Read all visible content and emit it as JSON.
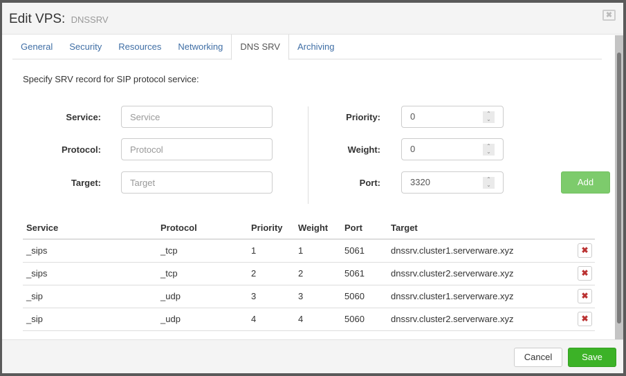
{
  "header": {
    "title": "Edit VPS:",
    "subtitle": "DNSSRV"
  },
  "tabs": [
    {
      "label": "General"
    },
    {
      "label": "Security"
    },
    {
      "label": "Resources"
    },
    {
      "label": "Networking"
    },
    {
      "label": "DNS SRV",
      "active": true
    },
    {
      "label": "Archiving"
    }
  ],
  "form": {
    "intro": "Specify SRV record for SIP protocol service:",
    "service": {
      "label": "Service:",
      "placeholder": "Service",
      "value": ""
    },
    "protocol": {
      "label": "Protocol:",
      "placeholder": "Protocol",
      "value": ""
    },
    "target": {
      "label": "Target:",
      "placeholder": "Target",
      "value": ""
    },
    "priority": {
      "label": "Priority:",
      "value": "0"
    },
    "weight": {
      "label": "Weight:",
      "value": "0"
    },
    "port": {
      "label": "Port:",
      "value": "3320"
    },
    "add_label": "Add"
  },
  "table": {
    "columns": [
      "Service",
      "Protocol",
      "Priority",
      "Weight",
      "Port",
      "Target"
    ],
    "rows": [
      [
        "_sips",
        "_tcp",
        "1",
        "1",
        "5061",
        "dnssrv.cluster1.serverware.xyz"
      ],
      [
        "_sips",
        "_tcp",
        "2",
        "2",
        "5061",
        "dnssrv.cluster2.serverware.xyz"
      ],
      [
        "_sip",
        "_udp",
        "3",
        "3",
        "5060",
        "dnssrv.cluster1.serverware.xyz"
      ],
      [
        "_sip",
        "_udp",
        "4",
        "4",
        "5060",
        "dnssrv.cluster2.serverware.xyz"
      ]
    ]
  },
  "footer": {
    "cancel_label": "Cancel",
    "save_label": "Save"
  },
  "colors": {
    "accent": "#3cb227",
    "add": "#7dcb6c",
    "tab_link": "#3f6ea5",
    "delete": "#bb3333"
  }
}
